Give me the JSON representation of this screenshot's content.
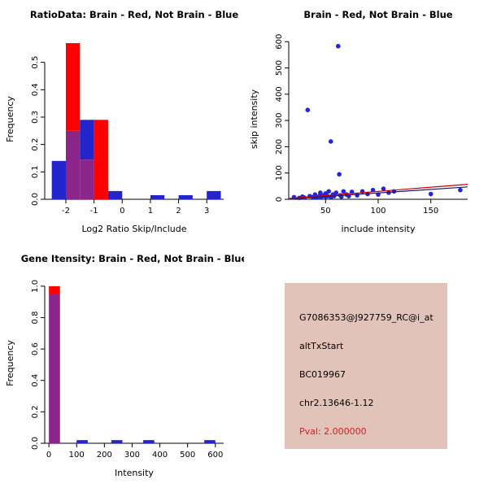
{
  "page": {
    "background": "#FFFFFF"
  },
  "chart_data": [
    {
      "type": "bar",
      "variant": "overlaid-histogram",
      "title": "RatioData: Brain - Red, Not Brain - Blue",
      "xlabel": "Log2 Ratio Skip/Include",
      "ylabel": "Frequency",
      "xlim": [
        -2.75,
        3.6
      ],
      "ylim": [
        0,
        0.585
      ],
      "bin_width": 0.5,
      "overlap_color": "#8B2589",
      "xticks": [
        {
          "v": -2,
          "l": "-2"
        },
        {
          "v": -1,
          "l": "-1"
        },
        {
          "v": 0,
          "l": "0"
        },
        {
          "v": 1,
          "l": "1"
        },
        {
          "v": 2,
          "l": "2"
        },
        {
          "v": 3,
          "l": "3"
        }
      ],
      "yticks": [
        {
          "v": 0,
          "l": "0.0"
        },
        {
          "v": 0.1,
          "l": "0.1"
        },
        {
          "v": 0.2,
          "l": "0.2"
        },
        {
          "v": 0.3,
          "l": "0.3"
        },
        {
          "v": 0.4,
          "l": "0.4"
        },
        {
          "v": 0.5,
          "l": "0.5"
        }
      ],
      "series": [
        {
          "name": "Not Brain (blue)",
          "color": "#2424CC",
          "bins": [
            {
              "x": -2.5,
              "f": 0.14
            },
            {
              "x": -2.0,
              "f": 0.25
            },
            {
              "x": -1.5,
              "f": 0.29
            },
            {
              "x": -0.5,
              "f": 0.03
            },
            {
              "x": 1.0,
              "f": 0.015
            },
            {
              "x": 2.0,
              "f": 0.015
            },
            {
              "x": 3.0,
              "f": 0.03
            }
          ]
        },
        {
          "name": "Brain (red)",
          "color": "#FF0000",
          "bins": [
            {
              "x": -2.0,
              "f": 0.57
            },
            {
              "x": -1.5,
              "f": 0.145
            },
            {
              "x": -1.0,
              "f": 0.29
            }
          ]
        }
      ]
    },
    {
      "type": "scatter",
      "title": "Brain - Red, Not Brain - Blue",
      "xlabel": "include intensity",
      "ylabel": "skip intensity",
      "xlim": [
        15,
        185
      ],
      "ylim": [
        0,
        610
      ],
      "point_color": "#2424E0",
      "xticks": [
        {
          "v": 50,
          "l": "50"
        },
        {
          "v": 100,
          "l": "100"
        },
        {
          "v": 150,
          "l": "150"
        }
      ],
      "yticks": [
        {
          "v": 0,
          "l": "0"
        },
        {
          "v": 100,
          "l": "100"
        },
        {
          "v": 200,
          "l": "200"
        },
        {
          "v": 300,
          "l": "300"
        },
        {
          "v": 400,
          "l": "400"
        },
        {
          "v": 500,
          "l": "500"
        },
        {
          "v": 600,
          "l": "600"
        }
      ],
      "points": [
        [
          20,
          8
        ],
        [
          25,
          5
        ],
        [
          28,
          10
        ],
        [
          30,
          6
        ],
        [
          33,
          340
        ],
        [
          35,
          12
        ],
        [
          38,
          8
        ],
        [
          40,
          10
        ],
        [
          40,
          18
        ],
        [
          42,
          6
        ],
        [
          44,
          12
        ],
        [
          45,
          25
        ],
        [
          46,
          8
        ],
        [
          48,
          15
        ],
        [
          50,
          10
        ],
        [
          50,
          22
        ],
        [
          52,
          12
        ],
        [
          53,
          30
        ],
        [
          55,
          220
        ],
        [
          55,
          8
        ],
        [
          57,
          18
        ],
        [
          58,
          12
        ],
        [
          60,
          25
        ],
        [
          62,
          583
        ],
        [
          63,
          95
        ],
        [
          64,
          15
        ],
        [
          65,
          10
        ],
        [
          67,
          30
        ],
        [
          70,
          18
        ],
        [
          72,
          12
        ],
        [
          75,
          28
        ],
        [
          80,
          15
        ],
        [
          85,
          30
        ],
        [
          90,
          20
        ],
        [
          95,
          35
        ],
        [
          100,
          18
        ],
        [
          105,
          40
        ],
        [
          110,
          25
        ],
        [
          115,
          30
        ],
        [
          150,
          20
        ],
        [
          178,
          35
        ]
      ],
      "lines": [
        {
          "name": "fit-not-brain",
          "color": "#1A1A6E",
          "x1": 15,
          "y1": 1,
          "x2": 185,
          "y2": 47
        },
        {
          "name": "fit-brain",
          "color": "#CC0000",
          "x1": 15,
          "y1": 3,
          "x2": 185,
          "y2": 57
        }
      ]
    },
    {
      "type": "bar",
      "variant": "overlaid-histogram",
      "title": "Gene Itensity: Brain - Red, Not Brain - Blue",
      "xlabel": "Intensity",
      "ylabel": "Frequency",
      "xlim": [
        -15,
        630
      ],
      "ylim": [
        0,
        1.02
      ],
      "bin_width": 40,
      "overlap_color": "#8B2589",
      "xticks": [
        {
          "v": 0,
          "l": "0"
        },
        {
          "v": 100,
          "l": "100"
        },
        {
          "v": 200,
          "l": "200"
        },
        {
          "v": 300,
          "l": "300"
        },
        {
          "v": 400,
          "l": "400"
        },
        {
          "v": 500,
          "l": "500"
        },
        {
          "v": 600,
          "l": "600"
        }
      ],
      "yticks": [
        {
          "v": 0,
          "l": "0.0"
        },
        {
          "v": 0.2,
          "l": "0.2"
        },
        {
          "v": 0.4,
          "l": "0.4"
        },
        {
          "v": 0.6,
          "l": "0.6"
        },
        {
          "v": 0.8,
          "l": "0.8"
        },
        {
          "v": 1.0,
          "l": "1.0"
        }
      ],
      "series": [
        {
          "name": "Not Brain (blue)",
          "color": "#2424CC",
          "bins": [
            {
              "x": 0,
              "f": 0.95
            },
            {
              "x": 100,
              "f": 0.02
            },
            {
              "x": 225,
              "f": 0.02
            },
            {
              "x": 340,
              "f": 0.02
            },
            {
              "x": 560,
              "f": 0.02
            }
          ]
        },
        {
          "name": "Brain (red)",
          "color": "#FF0000",
          "bins": [
            {
              "x": 0,
              "f": 1.0
            }
          ]
        }
      ]
    }
  ],
  "info_panel": {
    "background": "#E2C3B9",
    "lines": [
      {
        "text": "G7086353@J927759_RC@i_at",
        "color": "#000000"
      },
      {
        "text": "altTxStart",
        "color": "#000000"
      },
      {
        "text": "BC019967",
        "color": "#000000"
      },
      {
        "text": "chr2.13646-1.12",
        "color": "#000000"
      },
      {
        "text": "Pval: 2.000000",
        "color": "#CC2222"
      }
    ]
  }
}
